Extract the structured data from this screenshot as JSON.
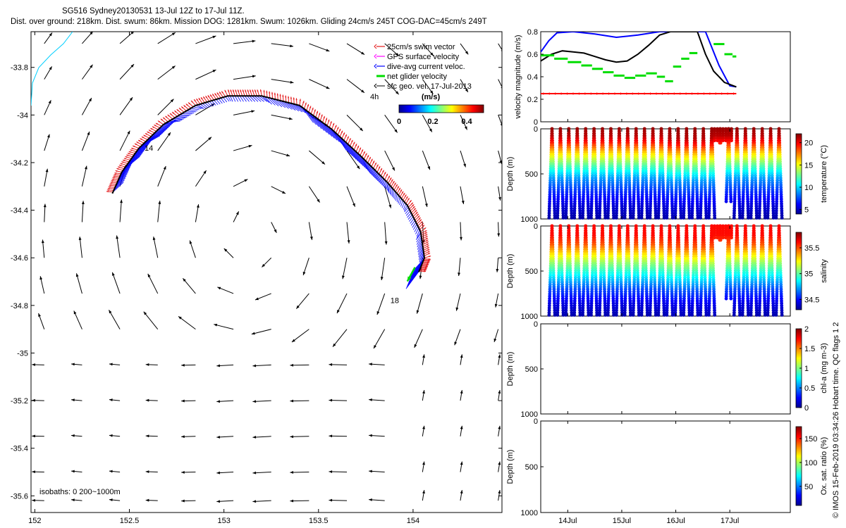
{
  "header": {
    "line1": "SG516 Sydney20130531 13-Jul 12Z to 17-Jul 11Z.",
    "line2": "Dist. over ground: 218km. Dist. swum: 86km. Mission DOG: 1281km. Swum: 1026km. Gliding 24cm/s 245T COG-DAC=45cm/s 249T"
  },
  "side_text": "© IMOS 15-Feb-2019 03:34:26 Hobart time. QC flags 1  2",
  "colors": {
    "swim_vector": "#e41a1c",
    "gps_velocity": "#ff00ff",
    "dac": "#0000ff",
    "net_glider": "#00dd00",
    "sfc_geo": "#000000",
    "coastline": "#00cfff",
    "velocity_black": "#000000"
  },
  "chart_data": [
    {
      "id": "map",
      "type": "quiver-map",
      "xlim": [
        151.98,
        154.47
      ],
      "ylim": [
        -35.67,
        -33.65
      ],
      "xticks": [
        152,
        152.5,
        153,
        153.5,
        154
      ],
      "xtick_labels": [
        "152",
        "152.5",
        "153",
        "153.5",
        "154"
      ],
      "yticks": [
        -33.8,
        -34,
        -34.2,
        -34.4,
        -34.6,
        -34.8,
        -35,
        -35.2,
        -35.4,
        -35.6
      ],
      "ytick_labels": [
        "-33.8",
        "-34",
        "-34.2",
        "-34.4",
        "-34.6",
        "-34.8",
        "-35",
        "-35.2",
        "-35.4",
        "-35.6"
      ],
      "legend": {
        "placement": "top-right",
        "entries": [
          {
            "label": "25cm/s swim vector",
            "color": "#e41a1c"
          },
          {
            "label": "GPS surface velocity",
            "color": "#ff00ff"
          },
          {
            "label": "dive-avg current veloc.",
            "color": "#0000ff"
          },
          {
            "label": "net glider velocity",
            "color": "#00dd00"
          },
          {
            "label": "sfc geo. vel. 17-Jul-2013",
            "color": "#000000"
          }
        ],
        "scale_label": "4h"
      },
      "colorbar": {
        "title": "(m/s)",
        "min": 0,
        "max": 0.5,
        "ticks": [
          0,
          0.2,
          0.4
        ],
        "tick_labels": [
          "0",
          "0.2",
          "0.4"
        ]
      },
      "annotations": [
        {
          "text": "18",
          "lon": 153.88,
          "lat": -34.79
        },
        {
          "text": "14",
          "lon": 152.58,
          "lat": -34.15
        }
      ],
      "isobath_label": "isobaths: 0   200~1000m",
      "track": [
        [
          152.41,
          -34.33
        ],
        [
          152.46,
          -34.24
        ],
        [
          152.55,
          -34.14
        ],
        [
          152.68,
          -34.04
        ],
        [
          152.85,
          -33.96
        ],
        [
          153.02,
          -33.92
        ],
        [
          153.2,
          -33.92
        ],
        [
          153.4,
          -33.96
        ],
        [
          153.57,
          -34.06
        ],
        [
          153.72,
          -34.17
        ],
        [
          153.86,
          -34.28
        ],
        [
          153.97,
          -34.38
        ],
        [
          154.04,
          -34.49
        ],
        [
          154.06,
          -34.6
        ],
        [
          154.03,
          -34.66
        ]
      ],
      "net_glider_arrow": {
        "lon": 154.01,
        "lat": -34.64,
        "u": -0.12,
        "v": -0.22
      },
      "geo_field": {
        "lon": [
          152.05,
          152.25,
          152.45,
          152.65,
          152.85,
          153.05,
          153.25,
          153.45,
          153.65,
          153.85,
          154.05,
          154.25,
          154.45
        ],
        "lat": [
          -33.7,
          -33.85,
          -34.0,
          -34.15,
          -34.3,
          -34.45,
          -34.6,
          -34.75,
          -34.9,
          -35.05,
          -35.2,
          -35.35,
          -35.5,
          -35.62
        ],
        "center": [
          153.15,
          -34.5
        ]
      }
    },
    {
      "id": "velocity",
      "type": "line",
      "xlim": [
        0,
        4.62
      ],
      "ylim": [
        0,
        0.8
      ],
      "yticks": [
        0,
        0.2,
        0.4,
        0.6,
        0.8
      ],
      "ytick_labels": [
        "0",
        "0.2",
        "0.4",
        "0.6",
        "0.8"
      ],
      "ylabel": "velocity magnitude (m/s)",
      "series": [
        {
          "name": "dive-avg current",
          "color": "#0000ff",
          "points": [
            [
              0,
              0.62
            ],
            [
              0.15,
              0.72
            ],
            [
              0.3,
              0.79
            ],
            [
              0.6,
              0.8
            ],
            [
              1.0,
              0.78
            ],
            [
              1.4,
              0.75
            ],
            [
              1.8,
              0.77
            ],
            [
              2.2,
              0.8
            ],
            [
              2.4,
              0.8
            ],
            [
              2.6,
              0.8
            ],
            [
              3.05,
              0.8
            ],
            [
              3.3,
              0.5
            ],
            [
              3.5,
              0.32
            ],
            [
              3.62,
              0.31
            ]
          ]
        },
        {
          "name": "sfc geo speed",
          "color": "#000000",
          "points": [
            [
              0,
              0.54
            ],
            [
              0.2,
              0.6
            ],
            [
              0.4,
              0.63
            ],
            [
              0.6,
              0.62
            ],
            [
              0.8,
              0.61
            ],
            [
              1.0,
              0.58
            ],
            [
              1.2,
              0.55
            ],
            [
              1.4,
              0.53
            ],
            [
              1.6,
              0.54
            ],
            [
              1.8,
              0.6
            ],
            [
              2.0,
              0.68
            ],
            [
              2.2,
              0.77
            ],
            [
              2.4,
              0.8
            ],
            [
              2.6,
              0.8
            ],
            [
              2.9,
              0.8
            ],
            [
              3.05,
              0.6
            ],
            [
              3.2,
              0.45
            ],
            [
              3.4,
              0.35
            ],
            [
              3.62,
              0.31
            ]
          ]
        },
        {
          "name": "swim speed",
          "color": "#ff0000",
          "points": [
            [
              0,
              0.25
            ],
            [
              3.62,
              0.25
            ]
          ]
        },
        {
          "name": "net glider speed",
          "color": "#00dd00",
          "segments": [
            [
              0,
              0.25,
              0.59
            ],
            [
              0.25,
              0.5,
              0.56
            ],
            [
              0.5,
              0.75,
              0.53
            ],
            [
              0.75,
              0.95,
              0.5
            ],
            [
              0.95,
              1.15,
              0.47
            ],
            [
              1.15,
              1.35,
              0.44
            ],
            [
              1.35,
              1.55,
              0.41
            ],
            [
              1.55,
              1.75,
              0.39
            ],
            [
              1.75,
              1.95,
              0.41
            ],
            [
              1.95,
              2.15,
              0.43
            ],
            [
              2.15,
              2.3,
              0.4
            ],
            [
              2.3,
              2.45,
              0.36
            ],
            [
              2.45,
              2.6,
              0.49
            ],
            [
              2.6,
              2.75,
              0.56
            ],
            [
              2.75,
              2.9,
              0.61
            ],
            [
              3.2,
              3.4,
              0.69
            ],
            [
              3.4,
              3.55,
              0.6
            ],
            [
              3.55,
              3.62,
              0.58
            ]
          ]
        }
      ]
    },
    {
      "id": "temperature",
      "type": "scatter",
      "ylabel": "Depth (m)",
      "ylim": [
        1000,
        0
      ],
      "yticks": [
        0,
        500,
        1000
      ],
      "ytick_labels": [
        "0",
        "500",
        "1000"
      ],
      "colorbar": {
        "label": "temperature (°C)",
        "min": 4,
        "max": 22,
        "ticks": [
          5,
          10,
          15,
          20
        ],
        "tick_labels": [
          "5",
          "10",
          "15",
          "20"
        ],
        "colormap": "jet"
      },
      "dives": 28,
      "profile": [
        [
          0,
          21.5
        ],
        [
          80,
          21
        ],
        [
          150,
          19.5
        ],
        [
          250,
          16.5
        ],
        [
          400,
          12.5
        ],
        [
          550,
          9
        ],
        [
          700,
          7
        ],
        [
          850,
          5.5
        ],
        [
          1000,
          4.5
        ]
      ]
    },
    {
      "id": "salinity",
      "type": "scatter",
      "ylabel": "Depth (m)",
      "ylim": [
        1000,
        0
      ],
      "yticks": [
        0,
        500,
        1000
      ],
      "ytick_labels": [
        "0",
        "500",
        "1000"
      ],
      "colorbar": {
        "label": "salinity",
        "min": 34.3,
        "max": 35.8,
        "ticks": [
          34.5,
          35,
          35.5
        ],
        "tick_labels": [
          "34.5",
          "35",
          "35.5"
        ],
        "colormap": "jet"
      },
      "dives": 28,
      "profile": [
        [
          0,
          35.6
        ],
        [
          100,
          35.6
        ],
        [
          200,
          35.5
        ],
        [
          300,
          35.3
        ],
        [
          400,
          35.1
        ],
        [
          550,
          34.85
        ],
        [
          700,
          34.6
        ],
        [
          850,
          34.45
        ],
        [
          1000,
          34.35
        ]
      ]
    },
    {
      "id": "chla",
      "type": "scatter",
      "ylabel": "Depth (m)",
      "ylim": [
        1000,
        0
      ],
      "yticks": [
        0,
        500,
        1000
      ],
      "ytick_labels": [
        "0",
        "500",
        "1000"
      ],
      "colorbar": {
        "label": "chl-a (mg m-3)",
        "min": 0,
        "max": 2,
        "ticks": [
          0,
          0.5,
          1,
          1.5,
          2
        ],
        "tick_labels": [
          "0",
          "0.5",
          "1",
          "1.5",
          "2"
        ],
        "colormap": "jet"
      }
    },
    {
      "id": "oxygen",
      "type": "scatter",
      "ylabel": "Depth (m)",
      "ylim": [
        1000,
        0
      ],
      "yticks": [
        0,
        500,
        1000
      ],
      "ytick_labels": [
        "0",
        "500",
        "1000"
      ],
      "xticks": [
        0.5,
        1.5,
        2.5,
        3.5
      ],
      "xtick_labels": [
        "14Jul",
        "15Jul",
        "16Jul",
        "17Jul"
      ],
      "colorbar": {
        "label": "Ox. sat. ratio (%)",
        "min": 10,
        "max": 175,
        "ticks": [
          50,
          100,
          150
        ],
        "tick_labels": [
          "50",
          "100",
          "150"
        ],
        "colormap": "jet"
      }
    }
  ]
}
